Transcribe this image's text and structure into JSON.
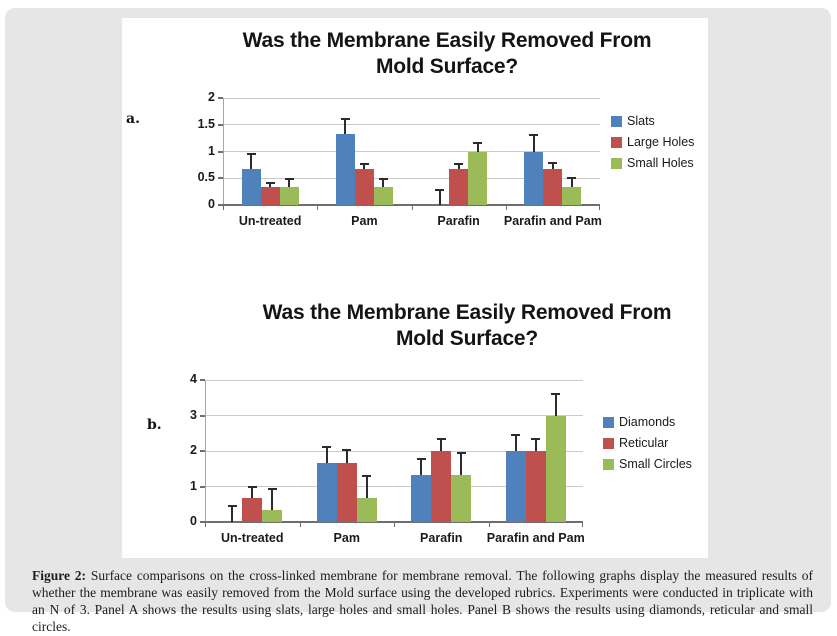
{
  "panels": [
    {
      "label": "a."
    },
    {
      "label": "b."
    }
  ],
  "chart_data": [
    {
      "type": "bar",
      "panel": "a",
      "title": "Was the Membrane Easily Removed From Mold Surface?",
      "categories": [
        "Un-treated",
        "Pam",
        "Parafin",
        "Parafin and Pam"
      ],
      "series": [
        {
          "name": "Slats",
          "color": "#4f81bd",
          "values": [
            0.67,
            1.33,
            0,
            1.0
          ],
          "errors_up": [
            0.28,
            0.28,
            0.28,
            0.3
          ]
        },
        {
          "name": "Large Holes",
          "color": "#c0504d",
          "values": [
            0.33,
            0.67,
            0.67,
            0.67
          ],
          "errors_up": [
            0.09,
            0.09,
            0.09,
            0.11
          ]
        },
        {
          "name": "Small Holes",
          "color": "#9bbb59",
          "values": [
            0.33,
            0.33,
            1.0,
            0.33
          ],
          "errors_up": [
            0.15,
            0.15,
            0.15,
            0.17
          ]
        }
      ],
      "ylim": [
        0,
        2
      ],
      "yticks": [
        0,
        0.5,
        1,
        1.5,
        2
      ],
      "grid": true,
      "legend_position": "right",
      "error_bars": "upper only, black T caps"
    },
    {
      "type": "bar",
      "panel": "b",
      "title": "Was the Membrane Easily Removed From Mold Surface?",
      "categories": [
        "Un-treated",
        "Pam",
        "Parafin",
        "Parafin and Pam"
      ],
      "series": [
        {
          "name": "Diamonds",
          "color": "#4f81bd",
          "values": [
            0,
            1.67,
            1.33,
            2.0
          ],
          "errors_up": [
            0.45,
            0.45,
            0.45,
            0.44
          ]
        },
        {
          "name": "Reticular",
          "color": "#c0504d",
          "values": [
            0.67,
            1.67,
            2.0,
            2.0
          ],
          "errors_up": [
            0.32,
            0.35,
            0.34,
            0.34
          ]
        },
        {
          "name": "Small Circles",
          "color": "#9bbb59",
          "values": [
            0.33,
            0.67,
            1.33,
            3.0
          ],
          "errors_up": [
            0.6,
            0.62,
            0.61,
            0.62
          ]
        }
      ],
      "ylim": [
        0,
        4
      ],
      "yticks": [
        0,
        1,
        2,
        3,
        4
      ],
      "grid": true,
      "legend_position": "right",
      "error_bars": "upper only, black T caps"
    }
  ],
  "caption": {
    "label": "Figure 2:",
    "text": " Surface comparisons on the cross-linked membrane for membrane removal. The following graphs display the measured results of whether the membrane was easily removed from the Mold surface using the developed rubrics. Experiments were conducted in triplicate with an N of 3. Panel A shows the results using slats, large holes and small holes. Panel B shows the results using diamonds, reticular and small circles."
  },
  "colors": {
    "card_background": "#e6e6e6",
    "figure_background": "#ffffff",
    "bar_blue": "#4f81bd",
    "bar_red": "#c0504d",
    "bar_green": "#9bbb59"
  }
}
